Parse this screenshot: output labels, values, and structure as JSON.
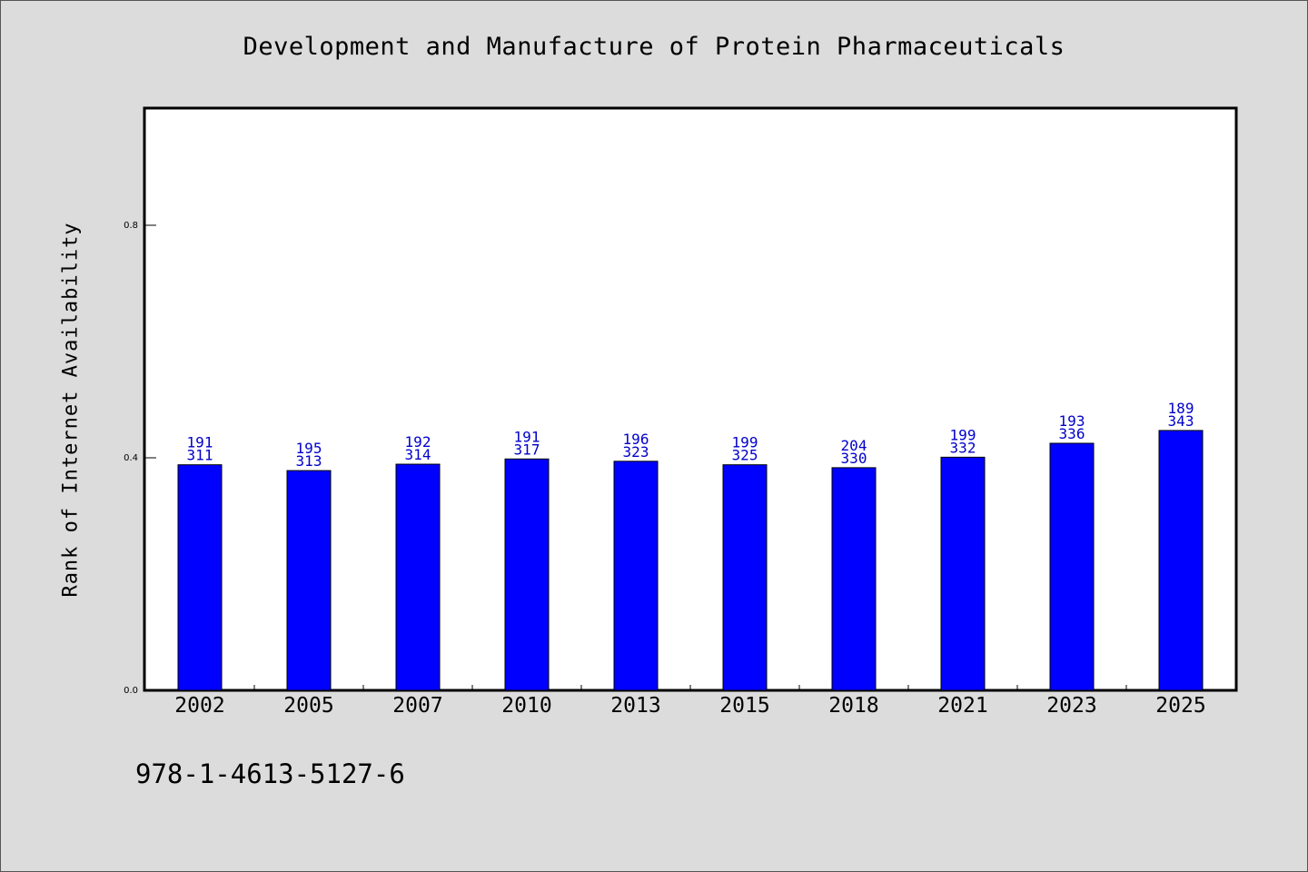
{
  "chart_data": {
    "type": "bar",
    "title": "Development and Manufacture of Protein Pharmaceuticals",
    "xlabel": "",
    "ylabel": "Rank of Internet Availability",
    "categories": [
      "2002",
      "2005",
      "2007",
      "2010",
      "2013",
      "2015",
      "2018",
      "2021",
      "2023",
      "2025"
    ],
    "values": [
      0.388,
      0.378,
      0.389,
      0.398,
      0.394,
      0.388,
      0.383,
      0.401,
      0.425,
      0.447
    ],
    "labels_top": [
      "191",
      "195",
      "192",
      "191",
      "196",
      "199",
      "204",
      "199",
      "193",
      "189"
    ],
    "labels_bottom": [
      "311",
      "313",
      "314",
      "317",
      "323",
      "325",
      "330",
      "332",
      "336",
      "343"
    ],
    "ylim": [
      0,
      1.0
    ],
    "yticks": [
      0.0,
      0.4,
      0.8
    ],
    "ytick_labels": [
      "0.0",
      "0.4",
      "0.8"
    ],
    "bar_color": "#0000ff",
    "label_color": "#0000cc",
    "grid": false,
    "legend": "none"
  },
  "footer_text": "978-1-4613-5127-6"
}
